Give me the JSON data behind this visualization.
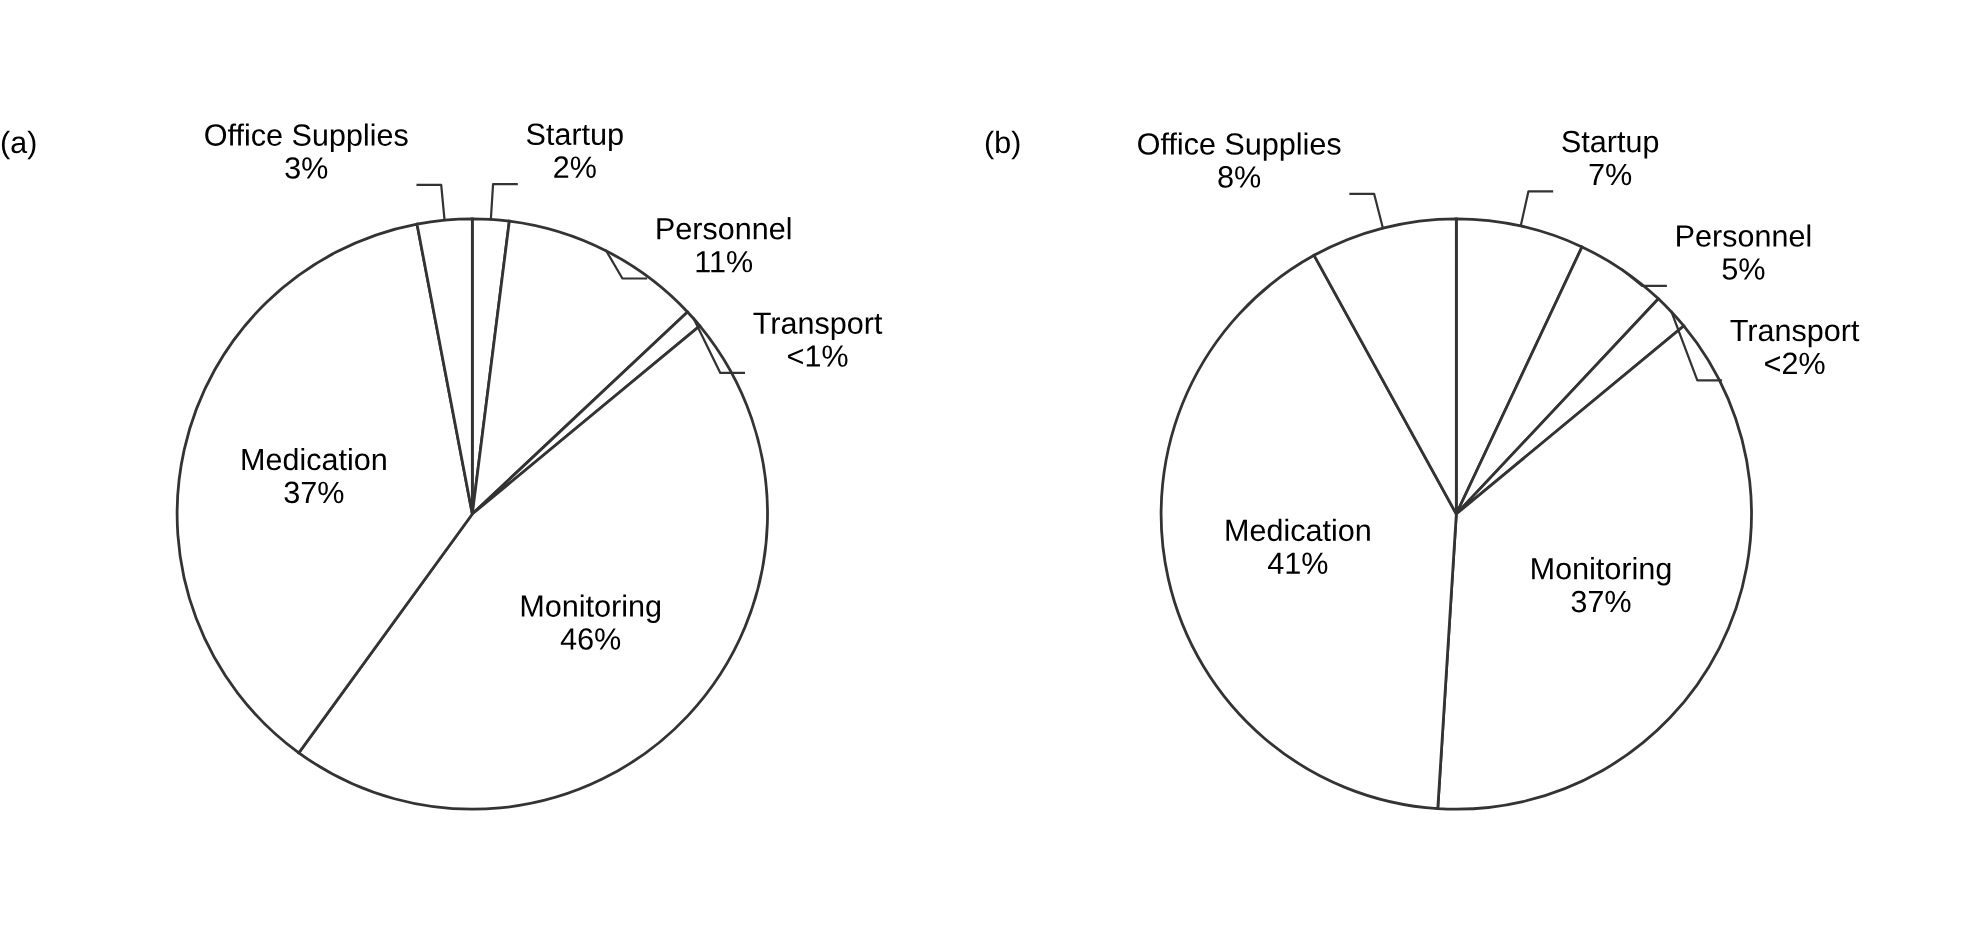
{
  "chart_data": [
    {
      "type": "pie",
      "title": "(a)",
      "categories": [
        "Startup",
        "Personnel",
        "Transport",
        "Monitoring",
        "Medication",
        "Office Supplies"
      ],
      "values": [
        2,
        11,
        1,
        46,
        37,
        3
      ],
      "value_labels": [
        "2%",
        "11%",
        "<1%",
        "46%",
        "37%",
        "3%"
      ],
      "colors": [
        "#ffffff",
        "#ffffff",
        "#ffffff",
        "#ffffff",
        "#ffffff",
        "#ffffff"
      ]
    },
    {
      "type": "pie",
      "title": "(b)",
      "categories": [
        "Startup",
        "Personnel",
        "Transport",
        "Monitoring",
        "Medication",
        "Office Supplies"
      ],
      "values": [
        7,
        5,
        2,
        37,
        41,
        8
      ],
      "value_labels": [
        "7%",
        "5%",
        "<2%",
        "37%",
        "41%",
        "8%"
      ],
      "colors": [
        "#ffffff",
        "#ffffff",
        "#ffffff",
        "#ffffff",
        "#ffffff",
        "#ffffff"
      ]
    }
  ]
}
